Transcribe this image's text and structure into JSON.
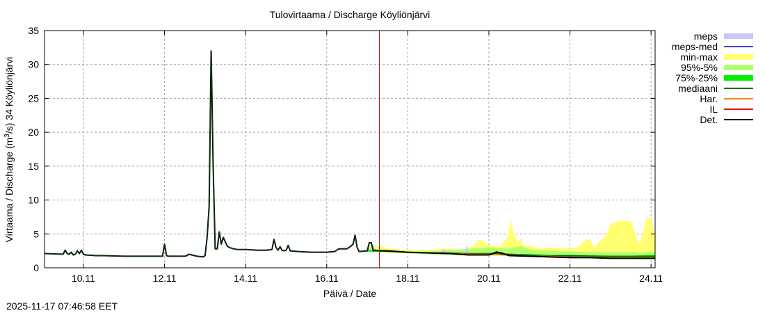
{
  "chart_data": {
    "type": "line",
    "title": "Tulovirtaama / Discharge  Köyliönjärvi",
    "xlabel": "Päivä / Date",
    "ylabel": "Virtaama / Discharge (m3/s)  34 Köyliönjärvi",
    "ylabel_parts": {
      "pre": "Virtaama / Discharge (m",
      "sup": "3",
      "post": "/s)  34 Köyliönjärvi"
    },
    "ylim": [
      0,
      35
    ],
    "xlim_days_after_9_11": [
      0.04,
      15.1
    ],
    "yticks": [
      0,
      5,
      10,
      15,
      20,
      25,
      30,
      35
    ],
    "xticks": [
      {
        "label": "10.11",
        "day": 1
      },
      {
        "label": "12.11",
        "day": 3
      },
      {
        "label": "14.11",
        "day": 5
      },
      {
        "label": "16.11",
        "day": 7
      },
      {
        "label": "18.11",
        "day": 9
      },
      {
        "label": "20.11",
        "day": 11
      },
      {
        "label": "22.11",
        "day": 13
      },
      {
        "label": "24.11",
        "day": 15
      }
    ],
    "grid": true,
    "legend_position": "right-outside",
    "forecast_start_day": 8.3,
    "timestamp": "2025-11-17 07:46:58 EET",
    "legend": [
      {
        "label": "meps",
        "color": "#c8c8f8",
        "kind": "band"
      },
      {
        "label": "meps-med",
        "color": "#4040e0",
        "kind": "line"
      },
      {
        "label": "min-max",
        "color": "#ffff70",
        "kind": "band"
      },
      {
        "label": "95%-5%",
        "color": "#b0ff70",
        "kind": "band"
      },
      {
        "label": "75%-25%",
        "color": "#00ee00",
        "kind": "band"
      },
      {
        "label": "mediaani",
        "color": "#007000",
        "kind": "line"
      },
      {
        "label": "Har.",
        "color": "#ff8000",
        "kind": "line"
      },
      {
        "label": "IL",
        "color": "#ee0000",
        "kind": "line"
      },
      {
        "label": "Det.",
        "color": "#000000",
        "kind": "line"
      }
    ],
    "series": [
      {
        "name": "Det.",
        "color": "#000000",
        "x": [
          0.04,
          0.5,
          0.55,
          0.6,
          0.65,
          0.7,
          0.75,
          0.8,
          0.85,
          0.9,
          0.95,
          1.0,
          1.05,
          1.3,
          1.5,
          2.0,
          2.5,
          2.95,
          3.0,
          3.05,
          3.1,
          3.3,
          3.5,
          3.55,
          3.6,
          3.8,
          3.95,
          4.0,
          4.05,
          4.1,
          4.15,
          4.2,
          4.25,
          4.3,
          4.35,
          4.4,
          4.45,
          4.5,
          4.55,
          4.6,
          4.7,
          4.8,
          5.0,
          5.3,
          5.5,
          5.65,
          5.7,
          5.75,
          5.8,
          5.85,
          5.9,
          5.95,
          6.0,
          6.05,
          6.1,
          6.3,
          6.6,
          7.0,
          7.2,
          7.3,
          7.5,
          7.6,
          7.65,
          7.7,
          7.75,
          7.8,
          8.0,
          8.05,
          8.1,
          8.15,
          8.2,
          8.3,
          8.5,
          9.0,
          9.5,
          10.0,
          10.5,
          11.0,
          11.2,
          11.3,
          11.5,
          12.0,
          12.5,
          13.0,
          13.5,
          14.0,
          14.5,
          15.1
        ],
        "y": [
          2.1,
          2.0,
          2.6,
          2.1,
          2.0,
          2.3,
          1.9,
          2.0,
          2.5,
          2.1,
          2.6,
          2.0,
          1.9,
          1.8,
          1.8,
          1.7,
          1.7,
          1.7,
          3.5,
          1.8,
          1.7,
          1.7,
          1.7,
          1.8,
          2.0,
          1.7,
          1.6,
          1.8,
          4.5,
          9.0,
          32.0,
          15.0,
          2.8,
          2.8,
          5.3,
          3.5,
          4.5,
          3.8,
          3.2,
          3.0,
          2.8,
          2.7,
          2.7,
          2.6,
          2.6,
          2.7,
          4.2,
          3.0,
          2.6,
          3.1,
          2.6,
          2.5,
          2.6,
          3.3,
          2.5,
          2.4,
          2.3,
          2.3,
          2.4,
          2.8,
          2.8,
          3.2,
          3.5,
          4.8,
          3.0,
          2.4,
          2.5,
          3.7,
          3.7,
          2.5,
          2.6,
          2.5,
          2.5,
          2.3,
          2.2,
          2.1,
          1.9,
          1.9,
          2.3,
          2.2,
          1.8,
          1.7,
          1.6,
          1.5,
          1.5,
          1.4,
          1.4,
          1.4
        ]
      },
      {
        "name": "IL",
        "color": "#ee0000",
        "x": [
          8.3,
          9.0,
          9.5,
          10.0,
          10.5,
          11.0,
          11.2,
          11.3,
          11.5,
          11.8,
          12.0,
          12.5,
          13.0,
          13.5,
          14.0,
          14.5,
          15.1
        ],
        "y": [
          2.5,
          2.3,
          2.2,
          2.1,
          1.9,
          1.9,
          2.4,
          2.0,
          1.9,
          1.7,
          1.7,
          1.6,
          1.6,
          1.5,
          1.4,
          1.4,
          1.4
        ]
      },
      {
        "name": "Har.",
        "color": "#ff8000",
        "x": [
          8.3,
          9.0,
          9.5,
          10.0,
          10.5,
          11.0,
          11.5,
          12.0,
          12.5,
          13.0,
          14.0,
          15.1
        ],
        "y": [
          2.5,
          2.3,
          2.2,
          2.1,
          2.0,
          2.0,
          1.9,
          1.7,
          1.7,
          1.6,
          1.5,
          1.5
        ]
      },
      {
        "name": "mediaani",
        "color": "#007000",
        "x": [
          8.3,
          9.0,
          9.5,
          10.0,
          10.5,
          11.0,
          11.5,
          12.0,
          12.5,
          13.0,
          14.0,
          15.1
        ],
        "y": [
          2.6,
          2.3,
          2.2,
          2.2,
          2.1,
          2.1,
          2.0,
          1.9,
          1.8,
          1.8,
          1.7,
          1.7
        ]
      }
    ],
    "bands": [
      {
        "name": "min-max",
        "color": "#ffff70",
        "x": [
          8.0,
          8.2,
          8.5,
          9.0,
          9.5,
          10.0,
          10.3,
          10.6,
          10.8,
          11.0,
          11.3,
          11.45,
          11.55,
          11.6,
          11.7,
          11.8,
          11.85,
          11.9,
          12.0,
          12.3,
          12.5,
          12.8,
          13.0,
          13.2,
          13.4,
          13.5,
          13.6,
          13.8,
          13.9,
          14.0,
          14.2,
          14.3,
          14.5,
          14.7,
          14.8,
          14.9,
          15.0,
          15.1
        ],
        "lo": [
          2.4,
          2.4,
          2.3,
          2.1,
          2.0,
          1.9,
          1.8,
          1.8,
          1.8,
          1.8,
          1.8,
          1.8,
          1.8,
          1.8,
          1.7,
          1.7,
          1.7,
          1.7,
          1.6,
          1.6,
          1.5,
          1.5,
          1.5,
          1.5,
          1.5,
          1.5,
          1.5,
          1.4,
          1.4,
          1.4,
          1.4,
          1.3,
          1.3,
          1.3,
          1.2,
          1.2,
          1.2,
          1.2
        ],
        "hi": [
          3.2,
          3.3,
          2.9,
          2.6,
          2.6,
          2.9,
          2.6,
          3.2,
          4.2,
          3.3,
          3.2,
          4.5,
          7.0,
          5.5,
          3.6,
          4.5,
          3.2,
          3.3,
          3.2,
          2.9,
          3.0,
          2.9,
          2.8,
          3.0,
          4.2,
          4.2,
          3.0,
          4.3,
          4.8,
          6.5,
          6.9,
          6.9,
          6.9,
          3.5,
          5.0,
          7.5,
          7.3,
          4.6
        ]
      },
      {
        "name": "95%-5%",
        "color": "#b0ff70",
        "x": [
          8.0,
          8.5,
          9.0,
          9.5,
          10.0,
          10.5,
          11.0,
          11.5,
          11.8,
          12.0,
          12.5,
          13.0,
          13.5,
          14.0,
          14.5,
          14.8,
          15.1
        ],
        "lo": [
          2.4,
          2.3,
          2.1,
          2.0,
          1.9,
          1.9,
          1.8,
          1.8,
          1.7,
          1.7,
          1.6,
          1.5,
          1.5,
          1.5,
          1.4,
          1.4,
          1.3
        ],
        "hi": [
          2.8,
          2.6,
          2.4,
          2.4,
          2.6,
          2.8,
          3.0,
          2.8,
          3.2,
          2.7,
          2.5,
          2.4,
          2.3,
          2.3,
          2.3,
          2.2,
          2.4
        ]
      },
      {
        "name": "75%-25%",
        "color": "#00ee00",
        "x": [
          8.0,
          8.5,
          9.0,
          9.5,
          10.0,
          10.5,
          11.0,
          11.5,
          12.0,
          12.5,
          13.0,
          13.5,
          14.0,
          14.5,
          15.1
        ],
        "lo": [
          2.4,
          2.3,
          2.2,
          2.1,
          2.0,
          2.0,
          1.9,
          1.8,
          1.8,
          1.7,
          1.6,
          1.6,
          1.5,
          1.5,
          1.5
        ],
        "hi": [
          2.7,
          2.5,
          2.3,
          2.2,
          2.2,
          2.2,
          2.2,
          2.1,
          2.0,
          1.9,
          1.9,
          1.8,
          1.8,
          1.8,
          1.9
        ]
      },
      {
        "name": "meps",
        "color": "#c8c8f8",
        "x": [
          8.05,
          8.1,
          8.15,
          8.2,
          9.8,
          9.85,
          9.9,
          9.95,
          10.0,
          10.05,
          10.1,
          10.4,
          10.45,
          10.5
        ],
        "lo": [
          2.6,
          2.6,
          2.6,
          2.6,
          2.2,
          2.2,
          2.2,
          2.2,
          2.2,
          2.2,
          2.2,
          2.1,
          2.1,
          2.1
        ],
        "hi": [
          2.6,
          3.3,
          3.3,
          2.6,
          2.2,
          2.7,
          2.7,
          2.3,
          2.4,
          2.4,
          2.2,
          2.1,
          3.4,
          2.1
        ]
      }
    ]
  }
}
